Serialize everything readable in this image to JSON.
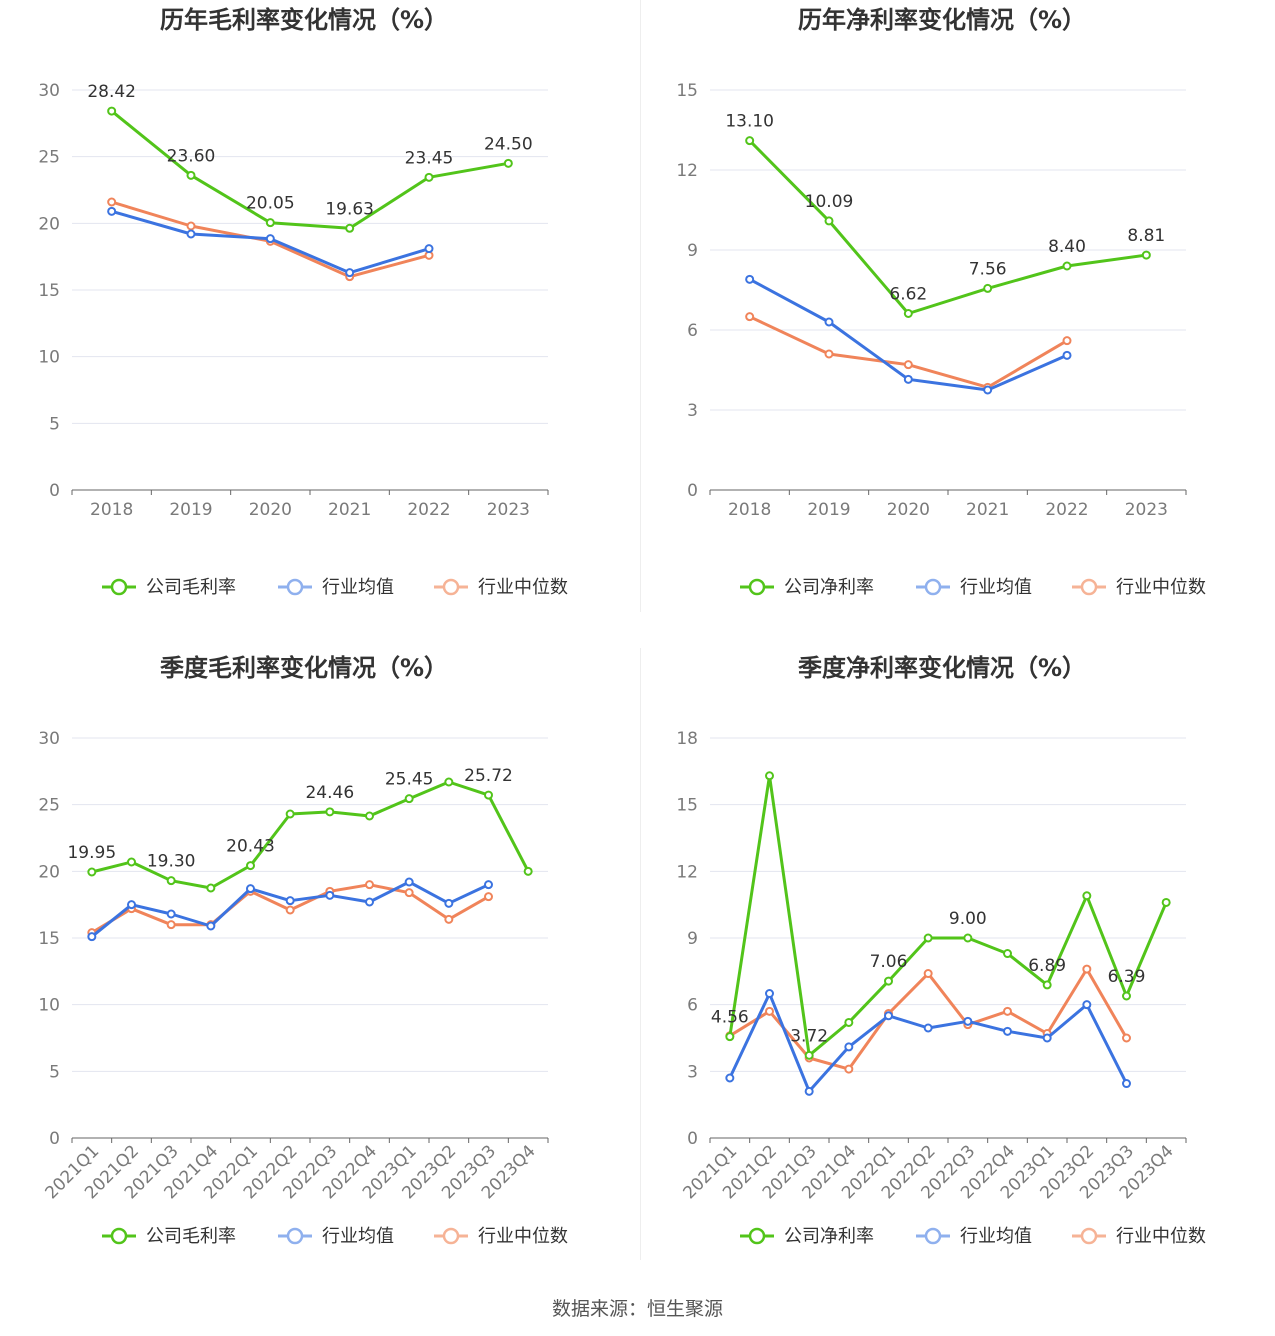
{
  "chart_data": [
    {
      "type": "line",
      "title": "历年毛利率变化情况（%）",
      "categories": [
        "2018",
        "2019",
        "2020",
        "2021",
        "2022",
        "2023"
      ],
      "ylim": [
        0,
        30
      ],
      "yticks": [
        0,
        5,
        10,
        15,
        20,
        25,
        30
      ],
      "grid": true,
      "legend_position": "bottom",
      "series": [
        {
          "name": "公司毛利率",
          "color": "#52c41a",
          "values": [
            28.42,
            23.6,
            20.05,
            19.63,
            23.45,
            24.5
          ],
          "labels": [
            "28.42",
            "23.60",
            "20.05",
            "19.63",
            "23.45",
            "24.50"
          ]
        },
        {
          "name": "行业均值",
          "color": "#3b73e0",
          "values": [
            20.9,
            19.2,
            18.85,
            16.3,
            18.1,
            null
          ]
        },
        {
          "name": "行业中位数",
          "color": "#f0845a",
          "values": [
            21.6,
            19.8,
            18.65,
            16.0,
            17.6,
            null
          ]
        }
      ]
    },
    {
      "type": "line",
      "title": "历年净利率变化情况（%）",
      "categories": [
        "2018",
        "2019",
        "2020",
        "2021",
        "2022",
        "2023"
      ],
      "ylim": [
        0,
        15
      ],
      "yticks": [
        0,
        3,
        6,
        9,
        12,
        15
      ],
      "grid": true,
      "legend_position": "bottom",
      "series": [
        {
          "name": "公司净利率",
          "color": "#52c41a",
          "values": [
            13.1,
            10.09,
            6.62,
            7.56,
            8.4,
            8.81
          ],
          "labels": [
            "13.10",
            "10.09",
            "6.62",
            "7.56",
            "8.40",
            "8.81"
          ]
        },
        {
          "name": "行业均值",
          "color": "#3b73e0",
          "values": [
            7.9,
            6.3,
            4.15,
            3.75,
            5.05,
            null
          ]
        },
        {
          "name": "行业中位数",
          "color": "#f0845a",
          "values": [
            6.5,
            5.1,
            4.7,
            3.85,
            5.6,
            null
          ]
        }
      ]
    },
    {
      "type": "line",
      "title": "季度毛利率变化情况（%）",
      "categories": [
        "2021Q1",
        "2021Q2",
        "2021Q3",
        "2021Q4",
        "2022Q1",
        "2022Q2",
        "2022Q3",
        "2022Q4",
        "2023Q1",
        "2023Q2",
        "2023Q3",
        "2023Q4"
      ],
      "ylim": [
        0,
        30
      ],
      "yticks": [
        0,
        5,
        10,
        15,
        20,
        25,
        30
      ],
      "grid": true,
      "legend_position": "bottom",
      "series": [
        {
          "name": "公司毛利率",
          "color": "#52c41a",
          "values": [
            19.95,
            20.7,
            19.3,
            18.75,
            20.43,
            24.3,
            24.46,
            24.15,
            25.45,
            26.7,
            25.72,
            20.0
          ],
          "labels": [
            "19.95",
            "",
            "19.30",
            "",
            "20.43",
            "",
            "24.46",
            "",
            "25.45",
            "",
            "25.72",
            ""
          ]
        },
        {
          "name": "行业均值",
          "color": "#3b73e0",
          "values": [
            15.1,
            17.5,
            16.8,
            15.9,
            18.7,
            17.8,
            18.2,
            17.7,
            19.2,
            17.6,
            19.0,
            null
          ]
        },
        {
          "name": "行业中位数",
          "color": "#f0845a",
          "values": [
            15.4,
            17.2,
            16.0,
            16.0,
            18.5,
            17.1,
            18.5,
            19.0,
            18.4,
            16.4,
            18.1,
            null
          ]
        }
      ]
    },
    {
      "type": "line",
      "title": "季度净利率变化情况（%）",
      "categories": [
        "2021Q1",
        "2021Q2",
        "2021Q3",
        "2021Q4",
        "2022Q1",
        "2022Q2",
        "2022Q3",
        "2022Q4",
        "2023Q1",
        "2023Q2",
        "2023Q3",
        "2023Q4"
      ],
      "ylim": [
        0,
        18
      ],
      "yticks": [
        0,
        3,
        6,
        9,
        12,
        15,
        18
      ],
      "grid": true,
      "legend_position": "bottom",
      "series": [
        {
          "name": "公司净利率",
          "color": "#52c41a",
          "values": [
            4.56,
            16.3,
            3.72,
            5.2,
            7.06,
            9.0,
            9.0,
            8.3,
            6.89,
            10.9,
            6.39,
            10.6
          ],
          "labels": [
            "4.56",
            "",
            "3.72",
            "",
            "7.06",
            "",
            "9.00",
            "",
            "6.89",
            "",
            "6.39",
            ""
          ]
        },
        {
          "name": "行业均值",
          "color": "#3b73e0",
          "values": [
            2.7,
            6.5,
            2.1,
            4.1,
            5.5,
            4.95,
            5.25,
            4.8,
            4.5,
            6.0,
            2.45,
            null
          ]
        },
        {
          "name": "行业中位数",
          "color": "#f0845a",
          "values": [
            4.6,
            5.7,
            3.6,
            3.1,
            5.6,
            7.4,
            5.1,
            5.7,
            4.7,
            7.6,
            4.5,
            null
          ]
        }
      ]
    }
  ],
  "source_text": "数据来源：恒生聚源"
}
